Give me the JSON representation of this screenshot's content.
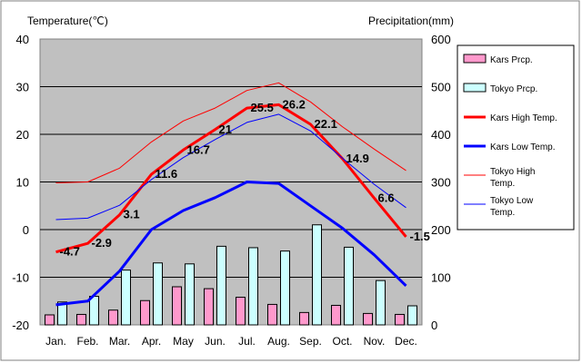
{
  "chart_data": {
    "type": "bar+line",
    "title_left": "Temperature(℃)",
    "title_right": "Precipitation(mm)",
    "categories": [
      "Jan.",
      "Feb.",
      "Mar.",
      "Apr.",
      "May",
      "Jun.",
      "Jul.",
      "Aug.",
      "Sep.",
      "Oct.",
      "Nov.",
      "Dec."
    ],
    "y_left": {
      "min": -20,
      "max": 40,
      "ticks": [
        -20,
        -10,
        0,
        10,
        20,
        30,
        40
      ]
    },
    "y_right": {
      "min": 0,
      "max": 600,
      "ticks": [
        0,
        100,
        200,
        300,
        400,
        500,
        600
      ]
    },
    "bars": [
      {
        "name": "Kars Prcp.",
        "color": "#ff99cc",
        "values": [
          21,
          22,
          31,
          51,
          80,
          76,
          58,
          43,
          26,
          41,
          24,
          22
        ]
      },
      {
        "name": "Tokyo Prcp.",
        "color": "#ccffff",
        "values": [
          48,
          60,
          115,
          130,
          128,
          165,
          162,
          155,
          210,
          163,
          93,
          40
        ]
      }
    ],
    "lines": [
      {
        "name": "Kars High Temp.",
        "color": "#ff0000",
        "width": 3,
        "values": [
          -4.7,
          -2.9,
          3.1,
          11.6,
          16.7,
          21,
          25.5,
          26.2,
          22.1,
          14.9,
          6.6,
          -1.5
        ],
        "labels": [
          "-4.7",
          "-2.9",
          "3.1",
          "11.6",
          "16.7",
          "21",
          "25.5",
          "26.2",
          "22.1",
          "14.9",
          "6.6",
          "-1.5"
        ]
      },
      {
        "name": "Kars Low Temp.",
        "color": "#0000ff",
        "width": 3,
        "values": [
          -15.8,
          -15,
          -8.7,
          0,
          4,
          6.7,
          10,
          9.7,
          5,
          0.3,
          -5.3,
          -11.8
        ]
      },
      {
        "name": "Tokyo High Temp.",
        "color": "#ff0000",
        "width": 1,
        "values": [
          9.8,
          10,
          12.9,
          18.4,
          22.8,
          25.5,
          29.2,
          30.8,
          26.8,
          21.6,
          16.9,
          12.4
        ]
      },
      {
        "name": "Tokyo Low Temp.",
        "color": "#0000ff",
        "width": 1,
        "values": [
          2.1,
          2.4,
          5.1,
          10.5,
          15.1,
          18.9,
          22.5,
          24.2,
          20.7,
          15.0,
          9.5,
          4.6
        ]
      }
    ],
    "legend": [
      "Kars Prcp.",
      "Tokyo Prcp.",
      "Kars High Temp.",
      "Kars Low Temp.",
      "Tokyo High Temp.",
      "Tokyo Low Temp."
    ],
    "legend_position": "right",
    "grid": true,
    "plot_background": "#c0c0c0"
  }
}
